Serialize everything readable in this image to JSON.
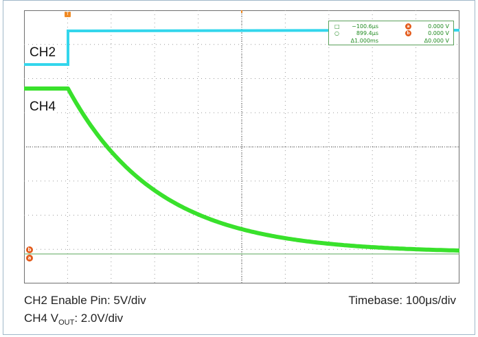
{
  "channels": {
    "ch2": {
      "label": "CH2",
      "color": "#33d6ec"
    },
    "ch4": {
      "label": "CH4",
      "color": "#39e12c"
    }
  },
  "trigger_marker": {
    "symbol": "T",
    "color": "#f08a24"
  },
  "cursor_readout": {
    "rows": [
      {
        "symbol": "□",
        "time": "−100.6μs",
        "marker": "a",
        "volt": "0.000 V"
      },
      {
        "symbol": "○",
        "time": "899.4μs",
        "marker": "b",
        "volt": "0.000 V"
      },
      {
        "symbol": "",
        "time": "Δ1.000ms",
        "marker": "",
        "volt": "Δ0.000 V"
      }
    ]
  },
  "ground_markers": {
    "a": "a",
    "b": "b"
  },
  "captions": {
    "left_line1": "CH2 Enable Pin: 5V/div",
    "left_line2_prefix": "CH4 V",
    "left_line2_sub": "OUT",
    "left_line2_suffix": ": 2.0V/div",
    "right": "Timebase: 100μs/div"
  },
  "grid": {
    "divisions_x": 10,
    "divisions_y": 8,
    "line_color": "#9a9a9a",
    "border_color": "#6e6e6e",
    "cursor_line_color": "#7ab77a"
  }
}
